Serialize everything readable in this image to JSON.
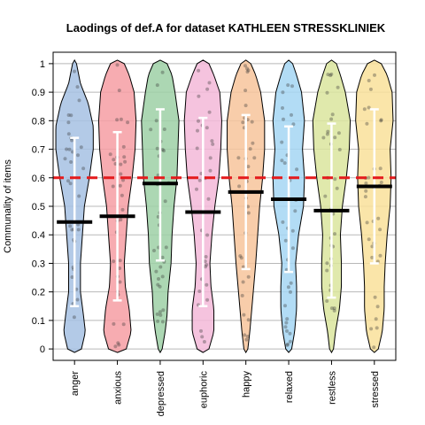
{
  "chart_data": {
    "type": "violin",
    "title": "Laodings of def.A for dataset KATHLEEN STRESSKLINIEK",
    "xlabel": "",
    "ylabel": "Communality of items",
    "ylim": [
      -0.04,
      1.04
    ],
    "yticks": [
      "0",
      "0.1",
      "0.2",
      "0.3",
      "0.4",
      "0.5",
      "0.6",
      "0.7",
      "0.8",
      "0.9",
      "1"
    ],
    "grid": true,
    "reference_line": {
      "value": 0.6,
      "color": "#e41a1c",
      "style": "dashed"
    },
    "categories": [
      "anger",
      "anxious",
      "depressed",
      "euphoric",
      "happy",
      "relaxed",
      "restless",
      "stressed"
    ],
    "colors": [
      "#a6c1e3",
      "#f69ea3",
      "#9ed0a6",
      "#f3b9d8",
      "#f7c49b",
      "#a5d6f3",
      "#dbe59e",
      "#f9e09a"
    ],
    "means": [
      0.445,
      0.465,
      0.58,
      0.48,
      0.55,
      0.525,
      0.485,
      0.57
    ],
    "ci_low": [
      0.15,
      0.17,
      0.31,
      0.15,
      0.28,
      0.27,
      0.18,
      0.3
    ],
    "ci_high": [
      0.74,
      0.76,
      0.84,
      0.81,
      0.82,
      0.78,
      0.79,
      0.84
    ]
  }
}
